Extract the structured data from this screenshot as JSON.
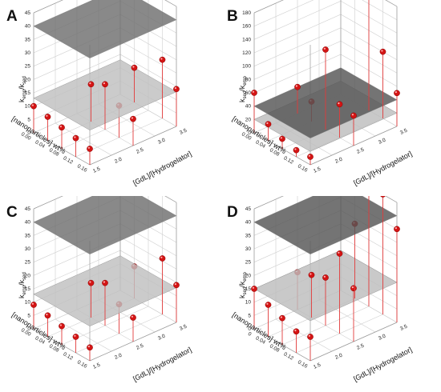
{
  "chart_data": [
    {
      "panel": "A",
      "type": "scatter",
      "zlabel": "k",
      "zlabel_sub_a": "emp",
      "zlabel_mid": "/k",
      "zlabel_sub_b": "sed",
      "xlabel": "[nanoparticles] wt%",
      "ylabel": "[GdL]/[Hydrogelator]",
      "xticks": [
        "0.00",
        "0.04",
        "0.08",
        "0.12",
        "0.16"
      ],
      "yticks": [
        "1.5",
        "2.0",
        "2.5",
        "3.0",
        "3.5"
      ],
      "zticks": [
        "0",
        "5",
        "10",
        "15",
        "20",
        "25",
        "30",
        "35",
        "40",
        "45"
      ],
      "zlim": [
        0,
        45
      ],
      "planes": [
        {
          "z": 40,
          "color": "#6f6f6f"
        },
        {
          "z": 13,
          "color": "#c0c0c0"
        }
      ],
      "points": [
        {
          "x": 0.0,
          "y": 1.5,
          "z": 10
        },
        {
          "x": 0.04,
          "y": 1.5,
          "z": 9
        },
        {
          "x": 0.08,
          "y": 1.5,
          "z": 8
        },
        {
          "x": 0.12,
          "y": 1.5,
          "z": 7
        },
        {
          "x": 0.16,
          "y": 1.5,
          "z": 6
        },
        {
          "x": 0.04,
          "y": 2.5,
          "z": 14
        },
        {
          "x": 0.08,
          "y": 2.5,
          "z": 17
        },
        {
          "x": 0.12,
          "y": 2.5,
          "z": 12
        },
        {
          "x": 0.16,
          "y": 2.5,
          "z": 10
        },
        {
          "x": 0.04,
          "y": 3.5,
          "z": 13
        },
        {
          "x": 0.12,
          "y": 3.5,
          "z": 22
        },
        {
          "x": 0.16,
          "y": 3.5,
          "z": 14
        }
      ]
    },
    {
      "panel": "B",
      "type": "scatter",
      "zlabel": "k",
      "zlabel_sub_a": "sed",
      "zlabel_mid": "/k",
      "zlabel_sub_b": "emp",
      "xlabel": "[nanoparticles] wt%",
      "ylabel": "[GdL]/[Hydrogelator]",
      "xticks": [
        "0.00",
        "0.04",
        "0.08",
        "0.12",
        "0.16"
      ],
      "yticks": [
        "1.5",
        "2.0",
        "2.5",
        "3.0",
        "3.5"
      ],
      "zticks": [
        "0",
        "20",
        "40",
        "60",
        "80",
        "100",
        "120",
        "140",
        "160",
        "180"
      ],
      "zlim": [
        0,
        180
      ],
      "planes": [
        {
          "z": 40,
          "color": "#555555"
        },
        {
          "z": 20,
          "color": "#bdbdbd"
        }
      ],
      "points": [
        {
          "x": 0.0,
          "y": 1.5,
          "z": 60
        },
        {
          "x": 0.0,
          "y": 2.5,
          "z": 40
        },
        {
          "x": 0.04,
          "y": 1.5,
          "z": 25
        },
        {
          "x": 0.04,
          "y": 2.5,
          "z": 30
        },
        {
          "x": 0.08,
          "y": 1.5,
          "z": 15
        },
        {
          "x": 0.08,
          "y": 2.5,
          "z": 120
        },
        {
          "x": 0.08,
          "y": 3.5,
          "z": 180
        },
        {
          "x": 0.12,
          "y": 1.5,
          "z": 10
        },
        {
          "x": 0.12,
          "y": 2.5,
          "z": 50
        },
        {
          "x": 0.12,
          "y": 3.5,
          "z": 100
        },
        {
          "x": 0.16,
          "y": 1.5,
          "z": 12
        },
        {
          "x": 0.16,
          "y": 2.5,
          "z": 45
        },
        {
          "x": 0.16,
          "y": 3.5,
          "z": 50
        }
      ]
    },
    {
      "panel": "C",
      "type": "scatter",
      "zlabel": "k",
      "zlabel_sub_a": "emp",
      "zlabel_mid": "/k",
      "zlabel_sub_b": "sed",
      "xlabel": "[nanoparticles] wt%",
      "ylabel": "[GdL]/[Hydrogelator]",
      "xticks": [
        "0.00",
        "0.04",
        "0.08",
        "0.12",
        "0.16"
      ],
      "yticks": [
        "1.5",
        "2.0",
        "2.5",
        "3.0",
        "3.5"
      ],
      "zticks": [
        "0",
        "5",
        "10",
        "15",
        "20",
        "25",
        "30",
        "35",
        "40",
        "45"
      ],
      "zlim": [
        0,
        45
      ],
      "planes": [
        {
          "z": 40,
          "color": "#6f6f6f"
        },
        {
          "z": 13,
          "color": "#c0c0c0"
        }
      ],
      "points": [
        {
          "x": 0.0,
          "y": 1.5,
          "z": 9
        },
        {
          "x": 0.04,
          "y": 1.5,
          "z": 8
        },
        {
          "x": 0.08,
          "y": 1.5,
          "z": 7
        },
        {
          "x": 0.12,
          "y": 1.5,
          "z": 6
        },
        {
          "x": 0.16,
          "y": 1.5,
          "z": 5
        },
        {
          "x": 0.04,
          "y": 2.5,
          "z": 13
        },
        {
          "x": 0.08,
          "y": 2.5,
          "z": 16
        },
        {
          "x": 0.12,
          "y": 2.5,
          "z": 11
        },
        {
          "x": 0.16,
          "y": 2.5,
          "z": 9
        },
        {
          "x": 0.04,
          "y": 3.5,
          "z": 12
        },
        {
          "x": 0.12,
          "y": 3.5,
          "z": 21
        },
        {
          "x": 0.16,
          "y": 3.5,
          "z": 14
        }
      ]
    },
    {
      "panel": "D",
      "type": "scatter",
      "zlabel": "k",
      "zlabel_sub_a": "sed",
      "zlabel_mid": "/k",
      "zlabel_sub_b": "emp",
      "xlabel": "[nanoparticles] wt%",
      "ylabel": "[GdL]/[Hydrogelator]",
      "xticks": [
        "0",
        "0.04",
        "0.08",
        "0.12",
        "0.16"
      ],
      "yticks": [
        "1.5",
        "2.0",
        "2.5",
        "3.0",
        "3.5"
      ],
      "zticks": [
        "0",
        "5",
        "10",
        "15",
        "20",
        "25",
        "30",
        "35",
        "40",
        "45"
      ],
      "zlim": [
        0,
        45
      ],
      "planes": [
        {
          "z": 40,
          "color": "#555555"
        },
        {
          "z": 15,
          "color": "#bdbdbd"
        }
      ],
      "points": [
        {
          "x": 0.0,
          "y": 1.5,
          "z": 15
        },
        {
          "x": 0.0,
          "y": 2.5,
          "z": 14
        },
        {
          "x": 0.04,
          "y": 1.5,
          "z": 12
        },
        {
          "x": 0.04,
          "y": 2.5,
          "z": 16
        },
        {
          "x": 0.04,
          "y": 3.5,
          "z": 28
        },
        {
          "x": 0.08,
          "y": 1.5,
          "z": 10
        },
        {
          "x": 0.08,
          "y": 2.5,
          "z": 18
        },
        {
          "x": 0.08,
          "y": 3.5,
          "z": 45
        },
        {
          "x": 0.12,
          "y": 1.5,
          "z": 8
        },
        {
          "x": 0.12,
          "y": 2.5,
          "z": 30
        },
        {
          "x": 0.12,
          "y": 3.5,
          "z": 45
        },
        {
          "x": 0.16,
          "y": 1.5,
          "z": 9
        },
        {
          "x": 0.16,
          "y": 2.5,
          "z": 20
        },
        {
          "x": 0.16,
          "y": 3.5,
          "z": 35
        }
      ]
    }
  ]
}
